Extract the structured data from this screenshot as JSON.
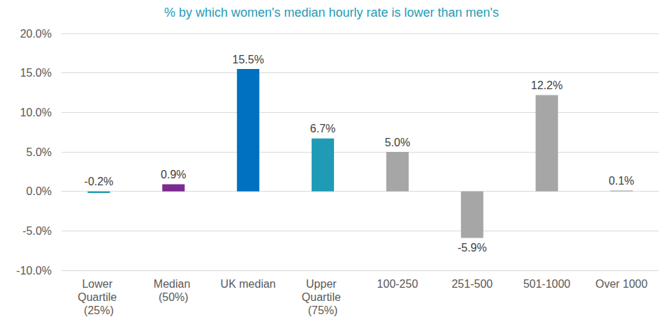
{
  "chart_data": {
    "type": "bar",
    "title": "% by which women's median hourly rate is lower than men's",
    "categories": [
      "Lower Quartile (25%)",
      "Median (50%)",
      "UK median",
      "Upper Quartile (75%)",
      "100-250",
      "251-500",
      "501-1000",
      "Over 1000"
    ],
    "values": [
      -0.2,
      0.9,
      15.5,
      6.7,
      5.0,
      -5.9,
      12.2,
      0.1
    ],
    "value_labels": [
      "-0.2%",
      "0.9%",
      "15.5%",
      "6.7%",
      "5.0%",
      "-5.9%",
      "12.2%",
      "0.1%"
    ],
    "colors": [
      "#1f9bb5",
      "#7b2a8f",
      "#0070c0",
      "#1f9bb5",
      "#a6a6a6",
      "#a6a6a6",
      "#a6a6a6",
      "#a6a6a6"
    ],
    "ylim": [
      -10,
      20
    ],
    "yticks": [
      {
        "value": -10,
        "label": "-10.0%"
      },
      {
        "value": -5,
        "label": "-5.0%"
      },
      {
        "value": 0,
        "label": "0.0%"
      },
      {
        "value": 5,
        "label": "5.0%"
      },
      {
        "value": 10,
        "label": "10.0%"
      },
      {
        "value": 15,
        "label": "15.0%"
      },
      {
        "value": 20,
        "label": "20.0%"
      }
    ],
    "grid": true,
    "data_labels": true
  }
}
